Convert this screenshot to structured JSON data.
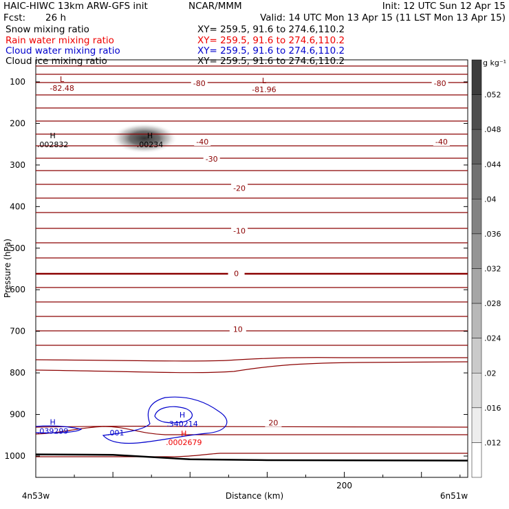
{
  "header": {
    "title": "HAIC-HIWC 13km ARW-GFS init",
    "center": "NCAR/MMM",
    "init": "Init: 12 UTC Sun 12 Apr 15",
    "fcst_label": "Fcst:",
    "fcst_value": "26 h",
    "valid": "Valid: 14 UTC Mon 13 Apr 15 (11 LST Mon 13 Apr 15)"
  },
  "fields": [
    {
      "name": "Snow mixing ratio",
      "xy": "XY= 259.5, 91.6 to 274.6,110.2",
      "color": "#000000"
    },
    {
      "name": "Rain water mixing ratio",
      "xy": "XY= 259.5, 91.6 to 274.6,110.2",
      "color": "#ee0000"
    },
    {
      "name": "Cloud water mixing ratio",
      "xy": "XY= 259.5, 91.6 to 274.6,110.2",
      "color": "#0000cc"
    },
    {
      "name": "Cloud ice mixing ratio",
      "xy": "XY= 259.5, 91.6 to 274.6,110.2",
      "color": "#000000"
    }
  ],
  "colorbar": {
    "unit": "g kg⁻¹",
    "ticks": [
      ".052",
      ".048",
      ".044",
      ".04",
      ".036",
      ".032",
      ".028",
      ".024",
      ".02",
      ".016",
      ".012"
    ]
  },
  "chart_data": {
    "type": "contour",
    "xlabel": "Distance (km)",
    "ylabel": "Pressure (hPa)",
    "x_ticks": [
      200
    ],
    "x_endpoints": {
      "left": "4n53w",
      "right": "6n51w"
    },
    "xlim": [
      0,
      280
    ],
    "ylim": [
      1030,
      60
    ],
    "y_ticks": [
      100,
      200,
      300,
      400,
      500,
      600,
      700,
      800,
      900,
      1000
    ],
    "surface_pressure": [
      [
        0,
        996
      ],
      [
        50,
        997
      ],
      [
        100,
        1008
      ],
      [
        150,
        1010
      ],
      [
        280,
        1011
      ]
    ],
    "temperature_contour_labels": [
      {
        "value": "-80",
        "x": 106,
        "p": 103
      },
      {
        "value": "-80",
        "x": 262,
        "p": 103
      },
      {
        "value": "-40",
        "x": 108,
        "p": 244
      },
      {
        "value": "-40",
        "x": 263,
        "p": 244
      },
      {
        "value": "-30",
        "x": 114,
        "p": 285
      },
      {
        "value": "-20",
        "x": 132,
        "p": 356
      },
      {
        "value": "-10",
        "x": 132,
        "p": 458
      },
      {
        "value": "0",
        "x": 130,
        "p": 561
      },
      {
        "value": "10",
        "x": 131,
        "p": 695
      },
      {
        "value": "20",
        "x": 154,
        "p": 920
      }
    ],
    "extrema_labels": [
      {
        "type": "L",
        "value": "-82.48",
        "x": 17,
        "p": 100,
        "color": "#8b0000"
      },
      {
        "type": "L",
        "value": "-81.96",
        "x": 148,
        "p": 103,
        "color": "#8b0000"
      },
      {
        "type": "H",
        "value": ".002832",
        "x": 11,
        "p": 236,
        "color": "#000000"
      },
      {
        "type": "H",
        "value": ".00234",
        "x": 74,
        "p": 236,
        "color": "#000000"
      },
      {
        "type": "H",
        "value": ".039299",
        "x": 11,
        "p": 925,
        "color": "#0000cc"
      },
      {
        "type": "H",
        "value": ".340214",
        "x": 95,
        "p": 907,
        "color": "#0000cc"
      },
      {
        "type": "H",
        "value": ".0002679",
        "x": 96,
        "p": 952,
        "color": "#ee0000"
      }
    ],
    "cloud_water_contours": [
      ".001"
    ],
    "cloud_ice_shading_max_g_per_kg": 0.00234
  }
}
